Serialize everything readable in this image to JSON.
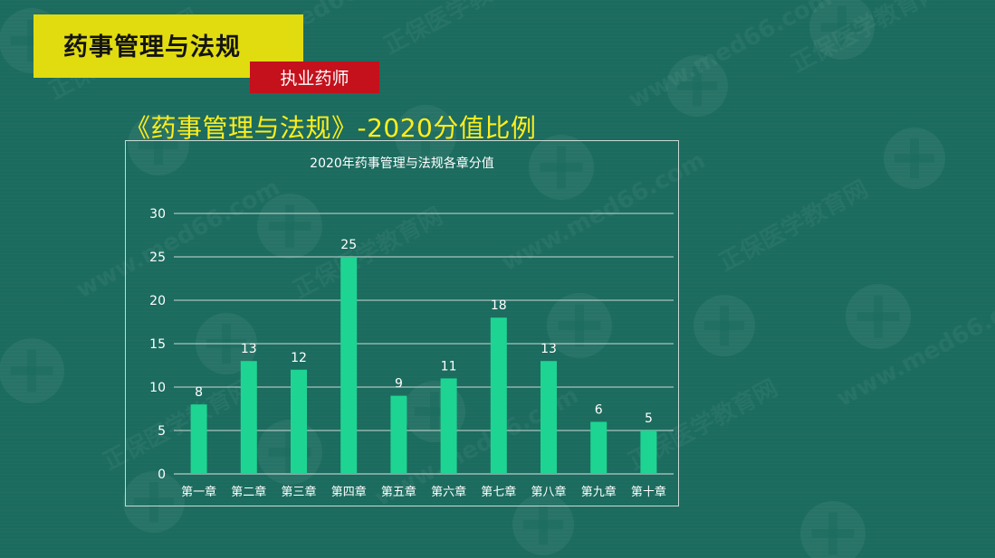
{
  "header": {
    "subject_title": "药事管理与法规",
    "badge_label": "执业药师"
  },
  "slide": {
    "headline": "《药事管理与法规》-2020分值比例"
  },
  "watermark": {
    "brand": "正保医学教育网",
    "url": "www.med66.com"
  },
  "colors": {
    "background": "#1b6b5e",
    "title_box": "#e1dc0f",
    "badge": "#c4111c",
    "headline": "#ffee1c",
    "bar": "#1ed492"
  },
  "chart_data": {
    "type": "bar",
    "title": "2020年药事管理与法规各章分值",
    "categories": [
      "第一章",
      "第二章",
      "第三章",
      "第四章",
      "第五章",
      "第六章",
      "第七章",
      "第八章",
      "第九章",
      "第十章"
    ],
    "values": [
      8,
      13,
      12,
      25,
      9,
      11,
      18,
      13,
      6,
      5
    ],
    "yticks": [
      0,
      5,
      10,
      15,
      20,
      25,
      30
    ],
    "ylim": [
      0,
      30
    ],
    "grid": true,
    "legend": "none",
    "data_labels": true
  }
}
